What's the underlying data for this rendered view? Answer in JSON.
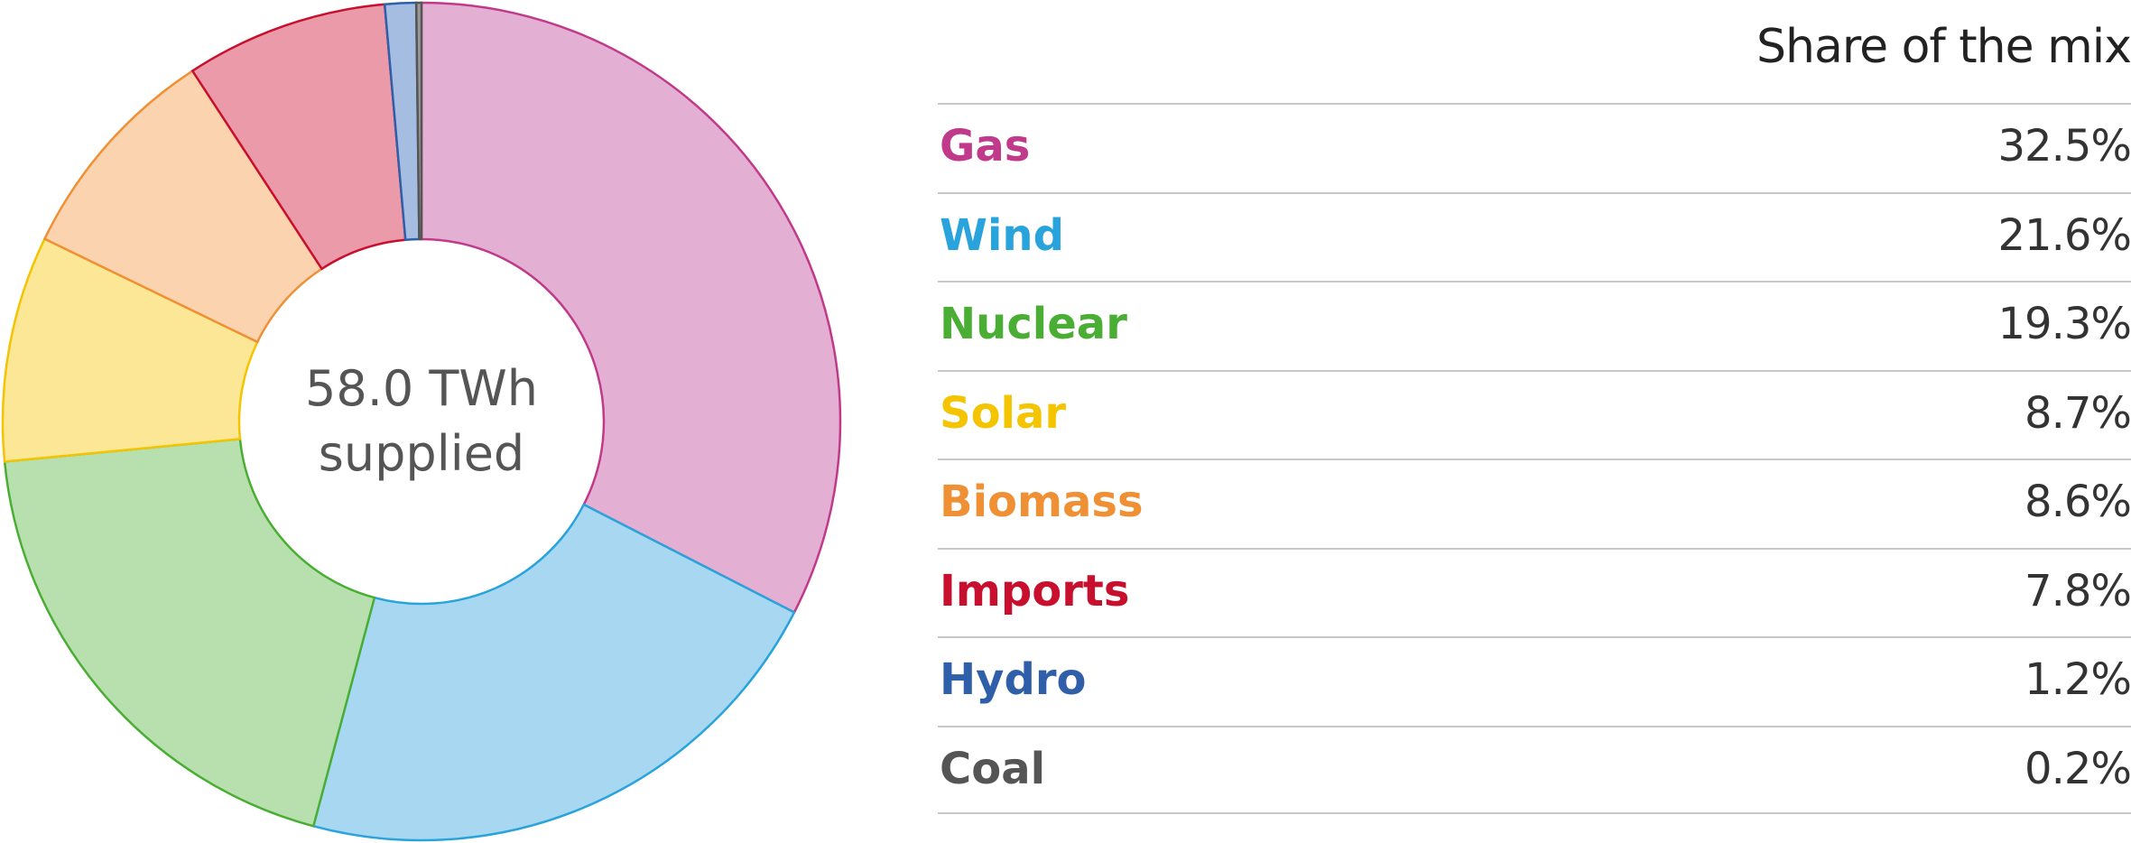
{
  "chart_data": {
    "type": "pie",
    "subtype": "donut",
    "center_label_line1": "58.0 TWh",
    "center_label_line2": "supplied",
    "column_header": "Share of the mix",
    "slices": [
      {
        "label": "Gas",
        "value": 32.5,
        "value_label": "32.5%",
        "color": "#c0398a",
        "fill": "#e3afd2"
      },
      {
        "label": "Wind",
        "value": 21.6,
        "value_label": "21.6%",
        "color": "#29a3dc",
        "fill": "#a8d8f1"
      },
      {
        "label": "Nuclear",
        "value": 19.3,
        "value_label": "19.3%",
        "color": "#4aae34",
        "fill": "#b7e0ae"
      },
      {
        "label": "Solar",
        "value": 8.7,
        "value_label": "8.7%",
        "color": "#f5c400",
        "fill": "#fbe796"
      },
      {
        "label": "Biomass",
        "value": 8.6,
        "value_label": "8.6%",
        "color": "#ef9034",
        "fill": "#fcd3af"
      },
      {
        "label": "Imports",
        "value": 7.8,
        "value_label": "7.8%",
        "color": "#c8102e",
        "fill": "#ea9aa8"
      },
      {
        "label": "Hydro",
        "value": 1.2,
        "value_label": "1.2%",
        "color": "#2f5fa8",
        "fill": "#a6bde2"
      },
      {
        "label": "Coal",
        "value": 0.2,
        "value_label": "0.2%",
        "color": "#555555",
        "fill": "#999999"
      }
    ]
  }
}
